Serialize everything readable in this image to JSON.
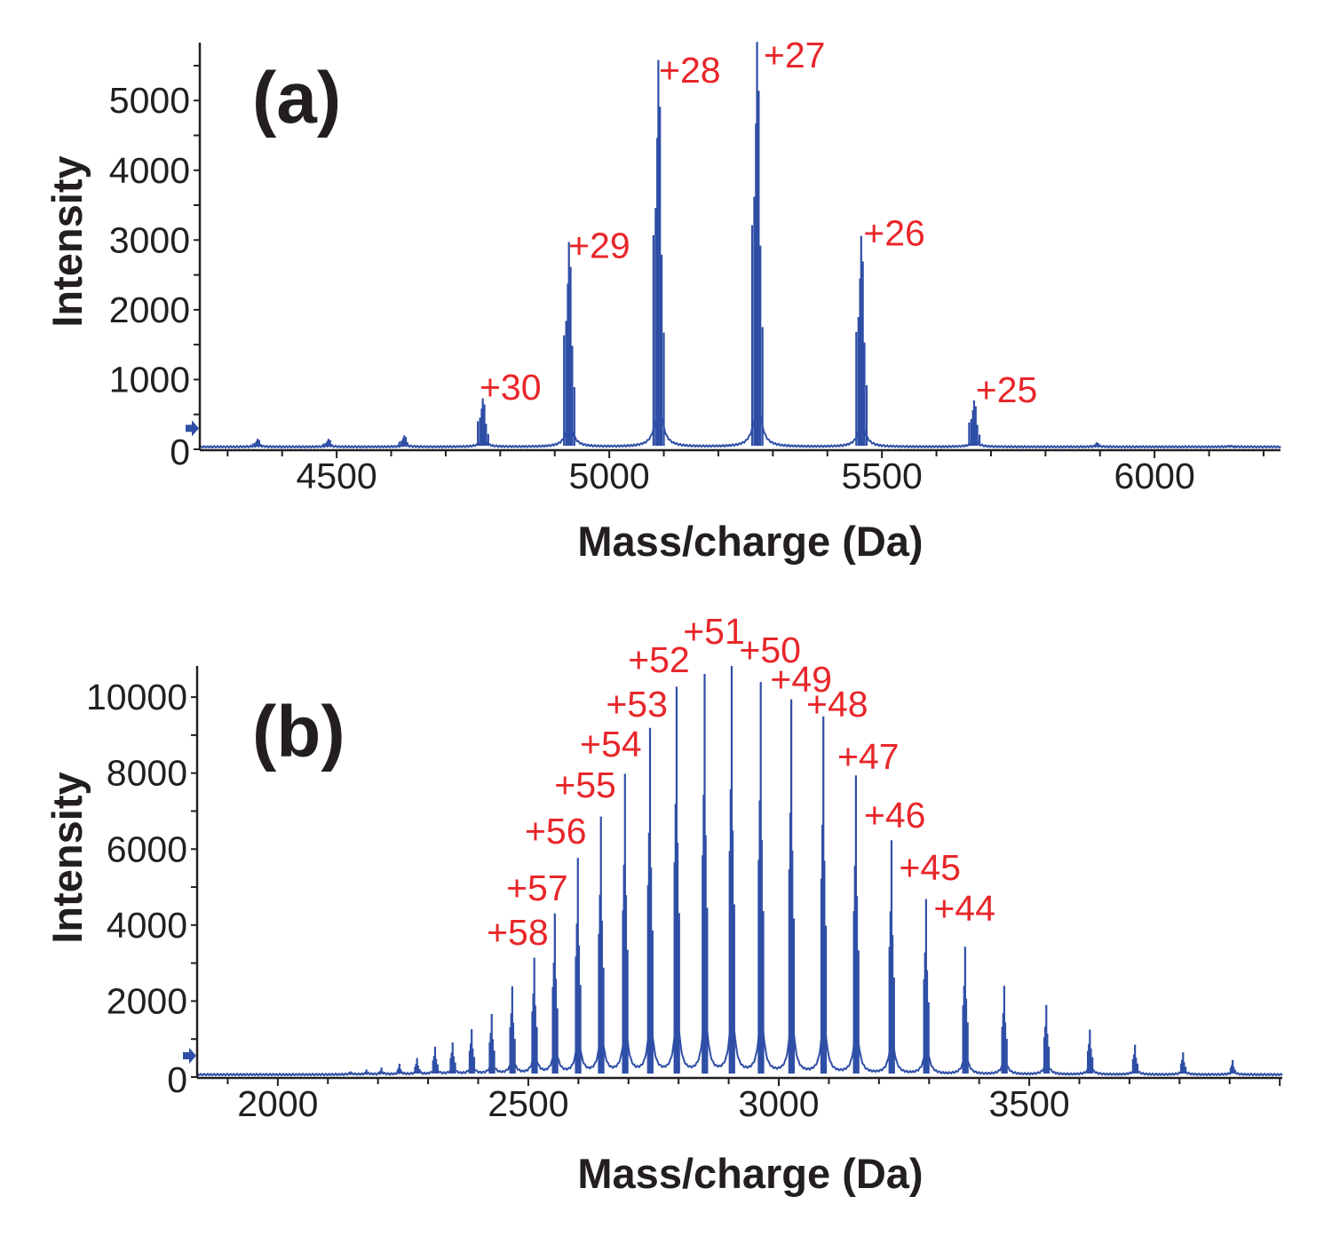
{
  "colors": {
    "spectrum": "#2f4fa6",
    "charge_labels": "#e8262a",
    "axes": "#231f20"
  },
  "chart_data": [
    {
      "type": "line",
      "panel_label": "(a)",
      "xlabel": "Mass/charge (Da)",
      "ylabel": "Intensity",
      "xlim": [
        4249,
        6231
      ],
      "ylim": [
        0,
        5830
      ],
      "x_ticks": [
        "4500",
        "5000",
        "5500",
        "6000"
      ],
      "x_tick_values": [
        4500,
        5000,
        5500,
        6000
      ],
      "x_minor_step": 100,
      "y_ticks": [
        "0",
        "1000",
        "2000",
        "3000",
        "4000",
        "5000"
      ],
      "y_tick_values": [
        0,
        1000,
        2000,
        3000,
        4000,
        5000
      ],
      "y_minor_step": 500,
      "baseline_marker_intensity": 300,
      "peaks": [
        {
          "mz": 4355,
          "intensity": 150
        },
        {
          "mz": 4485,
          "intensity": 150
        },
        {
          "mz": 4624,
          "intensity": 200
        },
        {
          "mz": 4768,
          "intensity": 730
        },
        {
          "mz": 4926,
          "intensity": 2970
        },
        {
          "mz": 5090,
          "intensity": 5580
        },
        {
          "mz": 5271,
          "intensity": 5840
        },
        {
          "mz": 5462,
          "intensity": 3060
        },
        {
          "mz": 5669,
          "intensity": 700
        },
        {
          "mz": 5894,
          "intensity": 100
        },
        {
          "mz": 6138,
          "intensity": 60
        }
      ],
      "annotations": [
        {
          "text": "+30",
          "x": 4762,
          "y": 712
        },
        {
          "text": "+29",
          "x": 4925,
          "y": 2745
        },
        {
          "text": "+28",
          "x": 5091,
          "y": 5260
        },
        {
          "text": "+27",
          "x": 5283,
          "y": 5476
        },
        {
          "text": "+26",
          "x": 5466,
          "y": 2922
        },
        {
          "text": "+25",
          "x": 5672,
          "y": 673
        }
      ]
    },
    {
      "type": "line",
      "panel_label": "(b)",
      "xlabel": "Mass/charge (Da)",
      "ylabel": "Intensity",
      "xlim": [
        1839,
        4005
      ],
      "ylim": [
        0,
        10820
      ],
      "x_ticks": [
        "2000",
        "2500",
        "3000",
        "3500"
      ],
      "x_tick_values": [
        2000,
        2500,
        3000,
        3500
      ],
      "x_minor_step": 100,
      "y_ticks": [
        "0",
        "2000",
        "4000",
        "6000",
        "8000",
        "10000"
      ],
      "y_tick_values": [
        0,
        2000,
        4000,
        6000,
        8000,
        10000
      ],
      "y_minor_step": 1000,
      "baseline_marker_intensity": 560,
      "peaks": [
        {
          "mz": 2145,
          "intensity": 150
        },
        {
          "mz": 2177,
          "intensity": 200
        },
        {
          "mz": 2207,
          "intensity": 250
        },
        {
          "mz": 2243,
          "intensity": 350
        },
        {
          "mz": 2278,
          "intensity": 500
        },
        {
          "mz": 2314,
          "intensity": 800
        },
        {
          "mz": 2349,
          "intensity": 910
        },
        {
          "mz": 2387,
          "intensity": 1260
        },
        {
          "mz": 2427,
          "intensity": 1660
        },
        {
          "mz": 2468,
          "intensity": 2390
        },
        {
          "mz": 2512,
          "intensity": 3140
        },
        {
          "mz": 2553,
          "intensity": 4310
        },
        {
          "mz": 2599,
          "intensity": 5770
        },
        {
          "mz": 2645,
          "intensity": 6855
        },
        {
          "mz": 2693,
          "intensity": 7980
        },
        {
          "mz": 2743,
          "intensity": 9190
        },
        {
          "mz": 2796,
          "intensity": 10275
        },
        {
          "mz": 2852,
          "intensity": 10610
        },
        {
          "mz": 2906,
          "intensity": 10820
        },
        {
          "mz": 2964,
          "intensity": 10400
        },
        {
          "mz": 3025,
          "intensity": 9940
        },
        {
          "mz": 3089,
          "intensity": 9490
        },
        {
          "mz": 3154,
          "intensity": 7940
        },
        {
          "mz": 3225,
          "intensity": 6230
        },
        {
          "mz": 3294,
          "intensity": 4685
        },
        {
          "mz": 3372,
          "intensity": 3430
        },
        {
          "mz": 3450,
          "intensity": 2400
        },
        {
          "mz": 3534,
          "intensity": 1900
        },
        {
          "mz": 3621,
          "intensity": 1250
        },
        {
          "mz": 3711,
          "intensity": 850
        },
        {
          "mz": 3807,
          "intensity": 650
        },
        {
          "mz": 3906,
          "intensity": 450
        }
      ],
      "annotations": [
        {
          "text": "+58",
          "x": 2417,
          "y": 3481
        },
        {
          "text": "+57",
          "x": 2456,
          "y": 4650
        },
        {
          "text": "+56",
          "x": 2493,
          "y": 6145
        },
        {
          "text": "+55",
          "x": 2552,
          "y": 7360
        },
        {
          "text": "+54",
          "x": 2603,
          "y": 8435
        },
        {
          "text": "+53",
          "x": 2655,
          "y": 9486
        },
        {
          "text": "+52",
          "x": 2699,
          "y": 10654
        },
        {
          "text": "+51",
          "x": 2809,
          "y": 11400
        },
        {
          "text": "+50",
          "x": 2921,
          "y": 10911
        },
        {
          "text": "+49",
          "x": 2983,
          "y": 10140
        },
        {
          "text": "+48",
          "x": 3055,
          "y": 9486
        },
        {
          "text": "+47",
          "x": 3117,
          "y": 8107
        },
        {
          "text": "+46",
          "x": 3170,
          "y": 6565
        },
        {
          "text": "+45",
          "x": 3240,
          "y": 5187
        },
        {
          "text": "+44",
          "x": 3309,
          "y": 4112
        }
      ]
    }
  ]
}
